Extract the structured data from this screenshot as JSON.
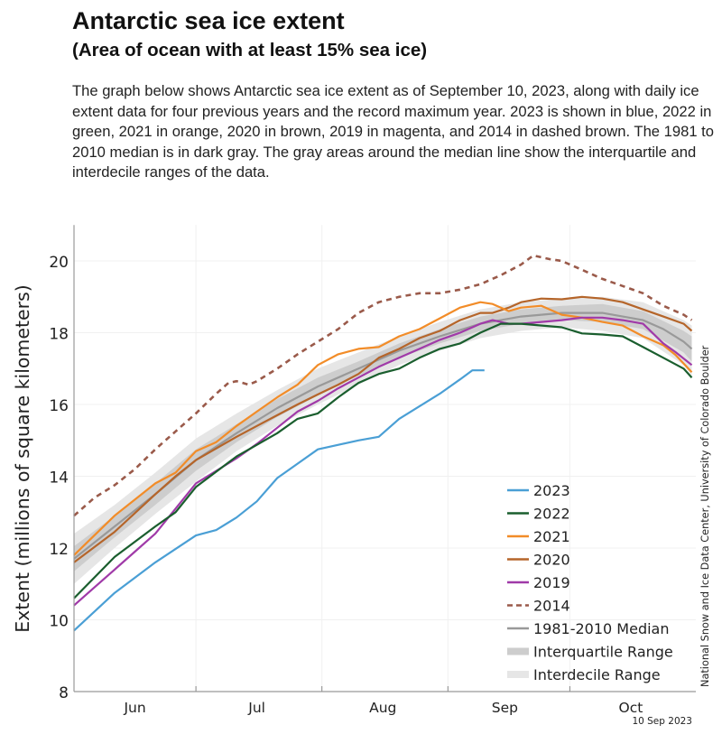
{
  "header": {
    "title": "Antarctic sea ice extent",
    "subtitle": "(Area of ocean with at least 15% sea ice)",
    "description": "The graph below shows Antarctic sea ice extent as of September 10, 2023, along with daily ice extent data for four previous years and the record maximum year. 2023 is shown in blue, 2022 in green, 2021 in orange, 2020 in brown, 2019 in magenta, and 2014 in dashed brown. The 1981 to 2010 median is in dark gray. The gray areas around the median line show the interquartile and interdecile ranges of the data."
  },
  "chart_data": {
    "type": "line",
    "title": "",
    "xlabel": "",
    "ylabel": "Extent (millions of square kilometers)",
    "xlim": [
      "06-01",
      "10-31"
    ],
    "ylim": [
      8,
      21
    ],
    "yticks": [
      8,
      10,
      12,
      14,
      16,
      18,
      20
    ],
    "xtick_labels": [
      "Jun",
      "Jul",
      "Aug",
      "Sep",
      "Oct"
    ],
    "grid": true,
    "legend_position": "bottom-right",
    "date_stamp": "10 Sep 2023",
    "credit": "National Snow and Ice Data Center, University of Colorado Boulder",
    "bands": {
      "dates": [
        "06-01",
        "06-11",
        "06-21",
        "07-01",
        "07-11",
        "07-21",
        "07-31",
        "08-10",
        "08-20",
        "08-30",
        "09-09",
        "09-19",
        "09-29",
        "10-09",
        "10-19",
        "10-29",
        "10-31"
      ],
      "interdecile": {
        "name": "Interdecile Range",
        "color": "#e6e6e6",
        "low": [
          11.0,
          12.0,
          12.95,
          13.85,
          14.7,
          15.4,
          16.0,
          16.55,
          17.1,
          17.5,
          17.85,
          18.05,
          18.15,
          18.05,
          17.85,
          17.1,
          16.8
        ],
        "high": [
          12.4,
          13.2,
          14.1,
          15.05,
          15.75,
          16.4,
          17.0,
          17.45,
          17.9,
          18.3,
          18.65,
          18.85,
          18.95,
          19.0,
          18.85,
          18.35,
          18.2
        ]
      },
      "interquartile": {
        "name": "Interquartile Range",
        "color": "#cdcdcd",
        "low": [
          11.35,
          12.3,
          13.2,
          14.15,
          14.95,
          15.65,
          16.25,
          16.8,
          17.3,
          17.7,
          18.05,
          18.25,
          18.35,
          18.3,
          18.1,
          17.45,
          17.2
        ],
        "high": [
          12.05,
          12.9,
          13.8,
          14.75,
          15.45,
          16.15,
          16.75,
          17.2,
          17.7,
          18.1,
          18.45,
          18.65,
          18.75,
          18.8,
          18.6,
          18.05,
          17.9
        ]
      }
    },
    "series": [
      {
        "name": "1981-2010 Median",
        "color": "#999999",
        "dashed": false,
        "points": [
          [
            "06-01",
            11.7
          ],
          [
            "06-11",
            12.6
          ],
          [
            "06-21",
            13.5
          ],
          [
            "07-01",
            14.45
          ],
          [
            "07-11",
            15.2
          ],
          [
            "07-21",
            15.9
          ],
          [
            "07-31",
            16.5
          ],
          [
            "08-10",
            17.0
          ],
          [
            "08-20",
            17.5
          ],
          [
            "08-30",
            17.9
          ],
          [
            "09-09",
            18.25
          ],
          [
            "09-19",
            18.45
          ],
          [
            "09-29",
            18.55
          ],
          [
            "10-09",
            18.55
          ],
          [
            "10-19",
            18.35
          ],
          [
            "10-24",
            18.1
          ],
          [
            "10-29",
            17.75
          ],
          [
            "10-31",
            17.55
          ]
        ]
      },
      {
        "name": "2014",
        "color": "#9a5a4a",
        "dashed": true,
        "points": [
          [
            "06-01",
            12.9
          ],
          [
            "06-06",
            13.4
          ],
          [
            "06-11",
            13.75
          ],
          [
            "06-16",
            14.2
          ],
          [
            "06-21",
            14.75
          ],
          [
            "06-26",
            15.25
          ],
          [
            "07-01",
            15.75
          ],
          [
            "07-06",
            16.3
          ],
          [
            "07-09",
            16.6
          ],
          [
            "07-11",
            16.65
          ],
          [
            "07-14",
            16.55
          ],
          [
            "07-16",
            16.65
          ],
          [
            "07-21",
            17.0
          ],
          [
            "07-26",
            17.4
          ],
          [
            "07-31",
            17.75
          ],
          [
            "08-05",
            18.1
          ],
          [
            "08-10",
            18.55
          ],
          [
            "08-15",
            18.85
          ],
          [
            "08-20",
            19.0
          ],
          [
            "08-25",
            19.1
          ],
          [
            "08-30",
            19.1
          ],
          [
            "09-04",
            19.2
          ],
          [
            "09-09",
            19.35
          ],
          [
            "09-14",
            19.6
          ],
          [
            "09-19",
            19.9
          ],
          [
            "09-22",
            20.15
          ],
          [
            "09-26",
            20.05
          ],
          [
            "09-29",
            20.0
          ],
          [
            "10-04",
            19.75
          ],
          [
            "10-09",
            19.5
          ],
          [
            "10-14",
            19.3
          ],
          [
            "10-19",
            19.1
          ],
          [
            "10-24",
            18.75
          ],
          [
            "10-29",
            18.5
          ],
          [
            "10-31",
            18.35
          ]
        ]
      },
      {
        "name": "2020",
        "color": "#b5652a",
        "dashed": false,
        "points": [
          [
            "06-01",
            11.6
          ],
          [
            "06-11",
            12.45
          ],
          [
            "06-21",
            13.5
          ],
          [
            "06-26",
            14.0
          ],
          [
            "07-01",
            14.45
          ],
          [
            "07-11",
            15.1
          ],
          [
            "07-16",
            15.4
          ],
          [
            "07-21",
            15.7
          ],
          [
            "07-26",
            16.0
          ],
          [
            "07-31",
            16.28
          ],
          [
            "08-05",
            16.55
          ],
          [
            "08-10",
            16.85
          ],
          [
            "08-15",
            17.3
          ],
          [
            "08-20",
            17.55
          ],
          [
            "08-25",
            17.85
          ],
          [
            "08-30",
            18.05
          ],
          [
            "09-04",
            18.35
          ],
          [
            "09-09",
            18.55
          ],
          [
            "09-12",
            18.55
          ],
          [
            "09-16",
            18.7
          ],
          [
            "09-19",
            18.85
          ],
          [
            "09-24",
            18.95
          ],
          [
            "09-29",
            18.93
          ],
          [
            "10-04",
            19.0
          ],
          [
            "10-09",
            18.95
          ],
          [
            "10-14",
            18.85
          ],
          [
            "10-19",
            18.65
          ],
          [
            "10-24",
            18.45
          ],
          [
            "10-29",
            18.25
          ],
          [
            "10-31",
            18.05
          ]
        ]
      },
      {
        "name": "2021",
        "color": "#f28c28",
        "dashed": false,
        "points": [
          [
            "06-01",
            11.8
          ],
          [
            "06-11",
            12.9
          ],
          [
            "06-21",
            13.8
          ],
          [
            "06-26",
            14.1
          ],
          [
            "07-01",
            14.7
          ],
          [
            "07-06",
            14.95
          ],
          [
            "07-11",
            15.4
          ],
          [
            "07-16",
            15.8
          ],
          [
            "07-21",
            16.2
          ],
          [
            "07-26",
            16.55
          ],
          [
            "07-31",
            17.1
          ],
          [
            "08-05",
            17.4
          ],
          [
            "08-10",
            17.55
          ],
          [
            "08-15",
            17.6
          ],
          [
            "08-20",
            17.9
          ],
          [
            "08-25",
            18.1
          ],
          [
            "08-30",
            18.4
          ],
          [
            "09-04",
            18.7
          ],
          [
            "09-09",
            18.85
          ],
          [
            "09-12",
            18.8
          ],
          [
            "09-16",
            18.6
          ],
          [
            "09-19",
            18.7
          ],
          [
            "09-24",
            18.75
          ],
          [
            "09-29",
            18.5
          ],
          [
            "10-04",
            18.42
          ],
          [
            "10-09",
            18.3
          ],
          [
            "10-14",
            18.2
          ],
          [
            "10-19",
            17.9
          ],
          [
            "10-24",
            17.65
          ],
          [
            "10-27",
            17.38
          ],
          [
            "10-31",
            16.9
          ]
        ]
      },
      {
        "name": "2019",
        "color": "#a03aa8",
        "dashed": false,
        "points": [
          [
            "06-01",
            10.4
          ],
          [
            "06-06",
            10.9
          ],
          [
            "06-11",
            11.4
          ],
          [
            "06-16",
            11.9
          ],
          [
            "06-21",
            12.4
          ],
          [
            "06-26",
            13.1
          ],
          [
            "07-01",
            13.8
          ],
          [
            "07-06",
            14.15
          ],
          [
            "07-11",
            14.5
          ],
          [
            "07-16",
            14.9
          ],
          [
            "07-21",
            15.35
          ],
          [
            "07-26",
            15.8
          ],
          [
            "07-31",
            16.1
          ],
          [
            "08-05",
            16.45
          ],
          [
            "08-10",
            16.75
          ],
          [
            "08-15",
            17.05
          ],
          [
            "08-20",
            17.3
          ],
          [
            "08-25",
            17.55
          ],
          [
            "08-30",
            17.8
          ],
          [
            "09-04",
            18.0
          ],
          [
            "09-09",
            18.25
          ],
          [
            "09-12",
            18.35
          ],
          [
            "09-16",
            18.25
          ],
          [
            "09-19",
            18.25
          ],
          [
            "09-24",
            18.3
          ],
          [
            "09-29",
            18.35
          ],
          [
            "10-04",
            18.42
          ],
          [
            "10-09",
            18.42
          ],
          [
            "10-14",
            18.35
          ],
          [
            "10-19",
            18.25
          ],
          [
            "10-24",
            17.7
          ],
          [
            "10-27",
            17.46
          ],
          [
            "10-31",
            17.1
          ]
        ]
      },
      {
        "name": "2022",
        "color": "#1a5e2e",
        "dashed": false,
        "points": [
          [
            "06-01",
            10.6
          ],
          [
            "06-11",
            11.75
          ],
          [
            "06-21",
            12.6
          ],
          [
            "06-26",
            13.0
          ],
          [
            "07-01",
            13.7
          ],
          [
            "07-11",
            14.55
          ],
          [
            "07-21",
            15.2
          ],
          [
            "07-26",
            15.6
          ],
          [
            "07-31",
            15.75
          ],
          [
            "08-05",
            16.2
          ],
          [
            "08-10",
            16.6
          ],
          [
            "08-15",
            16.85
          ],
          [
            "08-20",
            17.0
          ],
          [
            "08-25",
            17.3
          ],
          [
            "08-30",
            17.55
          ],
          [
            "09-04",
            17.7
          ],
          [
            "09-09",
            18.0
          ],
          [
            "09-14",
            18.25
          ],
          [
            "09-19",
            18.25
          ],
          [
            "09-29",
            18.15
          ],
          [
            "10-04",
            17.98
          ],
          [
            "10-09",
            17.95
          ],
          [
            "10-14",
            17.9
          ],
          [
            "10-19",
            17.6
          ],
          [
            "10-24",
            17.3
          ],
          [
            "10-29",
            17.0
          ],
          [
            "10-31",
            16.75
          ]
        ]
      },
      {
        "name": "2023",
        "color": "#4a9fd5",
        "dashed": false,
        "points": [
          [
            "06-01",
            9.7
          ],
          [
            "06-11",
            10.75
          ],
          [
            "06-21",
            11.6
          ],
          [
            "07-01",
            12.35
          ],
          [
            "07-06",
            12.5
          ],
          [
            "07-11",
            12.85
          ],
          [
            "07-16",
            13.3
          ],
          [
            "07-21",
            13.95
          ],
          [
            "07-31",
            14.75
          ],
          [
            "08-10",
            15.0
          ],
          [
            "08-15",
            15.1
          ],
          [
            "08-20",
            15.6
          ],
          [
            "08-30",
            16.3
          ],
          [
            "09-04",
            16.7
          ],
          [
            "09-07",
            16.95
          ],
          [
            "09-10",
            16.95
          ]
        ]
      }
    ],
    "legend_order": [
      "2023",
      "2022",
      "2021",
      "2020",
      "2019",
      "2014",
      "1981-2010 Median",
      "Interquartile Range",
      "Interdecile Range"
    ]
  }
}
